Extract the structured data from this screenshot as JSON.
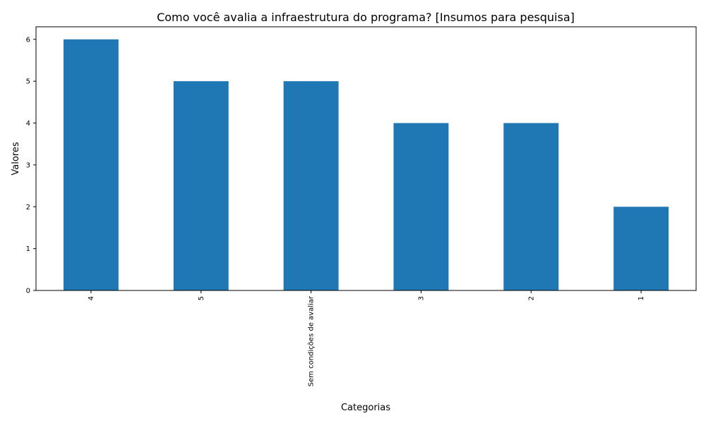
{
  "chart_data": {
    "type": "bar",
    "title": "Como você avalia a  infraestrutura do programa?  [Insumos para pesquisa]",
    "xlabel": "Categorias",
    "ylabel": "Valores",
    "categories": [
      "4",
      "5",
      "Sem condições de avaliar",
      "3",
      "2",
      "1"
    ],
    "values": [
      6,
      5,
      5,
      4,
      4,
      2
    ],
    "ylim": [
      0,
      6.3
    ],
    "yticks": [
      0,
      1,
      2,
      3,
      4,
      5,
      6
    ],
    "bar_color": "#1f77b4",
    "grid": false,
    "legend": "none"
  }
}
